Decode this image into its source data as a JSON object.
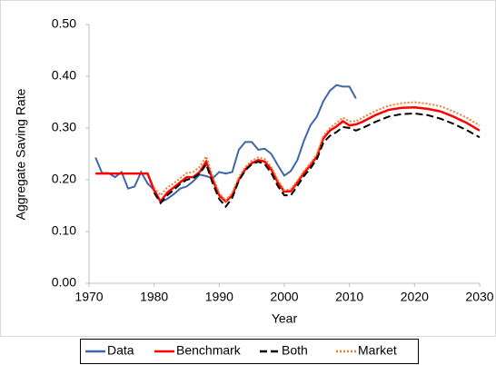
{
  "chart_data": {
    "type": "line",
    "xlabel": "Year",
    "ylabel": "Aggregate Saving Rate",
    "xlim": [
      1970,
      2030
    ],
    "xticks": [
      1970,
      1980,
      1990,
      2000,
      2010,
      2020,
      2030
    ],
    "ylim": [
      0,
      0.5
    ],
    "yticks": [
      {
        "value": 0,
        "label": "0.00"
      },
      {
        "value": 0.1,
        "label": "0.10"
      },
      {
        "value": 0.2,
        "label": "0.20"
      },
      {
        "value": 0.3,
        "label": "0.30"
      },
      {
        "value": 0.4,
        "label": "0.40"
      },
      {
        "value": 0.5,
        "label": "0.50"
      }
    ],
    "grid": false,
    "legend": "bottom",
    "series": [
      {
        "name": "Data",
        "color": "#3f66a8",
        "dash": "solid",
        "x": [
          1971,
          1972,
          1973,
          1974,
          1975,
          1976,
          1977,
          1978,
          1979,
          1980,
          1981,
          1982,
          1983,
          1984,
          1985,
          1986,
          1987,
          1988,
          1989,
          1990,
          1991,
          1992,
          1993,
          1994,
          1995,
          1996,
          1997,
          1998,
          1999,
          2000,
          2001,
          2002,
          2003,
          2004,
          2005,
          2006,
          2007,
          2008,
          2009,
          2010,
          2011
        ],
        "values": [
          0.243,
          0.213,
          0.213,
          0.205,
          0.215,
          0.183,
          0.187,
          0.215,
          0.193,
          0.18,
          0.157,
          0.163,
          0.172,
          0.183,
          0.187,
          0.197,
          0.21,
          0.207,
          0.203,
          0.215,
          0.212,
          0.215,
          0.258,
          0.273,
          0.273,
          0.258,
          0.26,
          0.25,
          0.228,
          0.208,
          0.217,
          0.238,
          0.275,
          0.305,
          0.322,
          0.352,
          0.372,
          0.383,
          0.38,
          0.38,
          0.357
        ]
      },
      {
        "name": "Benchmark",
        "color": "#ff0000",
        "dash": "solid",
        "x": [
          1971,
          1979,
          1980,
          1981,
          1982,
          1983,
          1984,
          1985,
          1986,
          1987,
          1988,
          1989,
          1990,
          1991,
          1992,
          1993,
          1994,
          1995,
          1996,
          1997,
          1998,
          1999,
          2000,
          2001,
          2002,
          2003,
          2004,
          2005,
          2006,
          2007,
          2008,
          2009,
          2010,
          2011,
          2012,
          2014,
          2016,
          2018,
          2020,
          2022,
          2024,
          2026,
          2028,
          2030
        ],
        "values": [
          0.212,
          0.212,
          0.18,
          0.158,
          0.175,
          0.185,
          0.195,
          0.205,
          0.205,
          0.215,
          0.235,
          0.2,
          0.17,
          0.158,
          0.17,
          0.2,
          0.22,
          0.232,
          0.238,
          0.235,
          0.22,
          0.195,
          0.177,
          0.178,
          0.195,
          0.213,
          0.228,
          0.245,
          0.28,
          0.295,
          0.303,
          0.313,
          0.305,
          0.307,
          0.312,
          0.325,
          0.335,
          0.339,
          0.34,
          0.337,
          0.332,
          0.322,
          0.31,
          0.295
        ]
      },
      {
        "name": "Both",
        "color": "#000000",
        "dash": "dashed",
        "x": [
          1980,
          1981,
          1982,
          1983,
          1984,
          1985,
          1986,
          1987,
          1988,
          1989,
          1990,
          1991,
          1992,
          1993,
          1994,
          1995,
          1996,
          1997,
          1998,
          1999,
          2000,
          2001,
          2002,
          2003,
          2004,
          2005,
          2006,
          2007,
          2008,
          2009,
          2010,
          2011,
          2012,
          2014,
          2016,
          2018,
          2020,
          2022,
          2024,
          2026,
          2028,
          2030
        ],
        "values": [
          0.175,
          0.155,
          0.17,
          0.18,
          0.192,
          0.2,
          0.203,
          0.212,
          0.23,
          0.193,
          0.163,
          0.148,
          0.165,
          0.198,
          0.218,
          0.23,
          0.235,
          0.23,
          0.213,
          0.188,
          0.17,
          0.17,
          0.188,
          0.207,
          0.222,
          0.24,
          0.272,
          0.285,
          0.292,
          0.302,
          0.3,
          0.295,
          0.3,
          0.312,
          0.322,
          0.327,
          0.328,
          0.325,
          0.318,
          0.308,
          0.296,
          0.282
        ]
      },
      {
        "name": "Market",
        "color": "#ed7d31",
        "dash": "dotted",
        "x": [
          1980,
          1981,
          1982,
          1983,
          1984,
          1985,
          1986,
          1987,
          1988,
          1989,
          1990,
          1991,
          1992,
          1993,
          1994,
          1995,
          1996,
          1997,
          1998,
          1999,
          2000,
          2001,
          2002,
          2003,
          2004,
          2005,
          2006,
          2007,
          2008,
          2009,
          2010,
          2011,
          2012,
          2014,
          2016,
          2018,
          2020,
          2022,
          2024,
          2026,
          2028,
          2030
        ],
        "values": [
          0.185,
          0.17,
          0.185,
          0.193,
          0.203,
          0.213,
          0.215,
          0.225,
          0.245,
          0.207,
          0.175,
          0.16,
          0.175,
          0.205,
          0.225,
          0.237,
          0.243,
          0.24,
          0.225,
          0.2,
          0.18,
          0.182,
          0.198,
          0.217,
          0.232,
          0.25,
          0.285,
          0.3,
          0.31,
          0.32,
          0.313,
          0.313,
          0.32,
          0.333,
          0.343,
          0.348,
          0.35,
          0.347,
          0.342,
          0.332,
          0.32,
          0.305
        ]
      }
    ]
  }
}
